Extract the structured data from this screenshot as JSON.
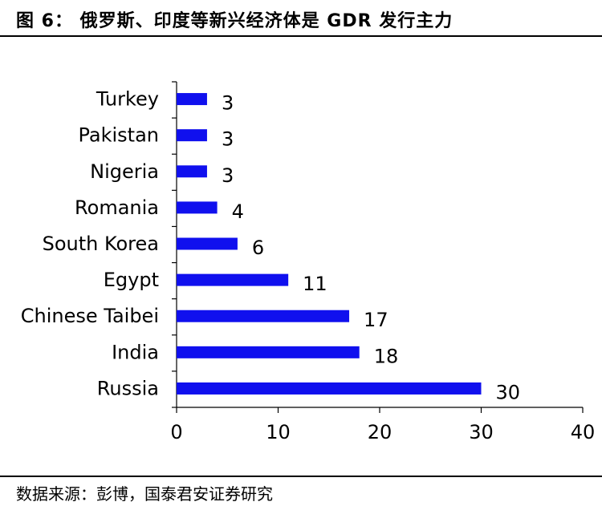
{
  "header": {
    "title": "图 6：  俄罗斯、印度等新兴经济体是 GDR 发行主力"
  },
  "footer": {
    "source": "数据来源：彭博，国泰君安证券研究"
  },
  "chart_data": {
    "type": "bar",
    "orientation": "horizontal",
    "title": "",
    "xlabel": "",
    "ylabel": "",
    "categories": [
      "Turkey",
      "Pakistan",
      "Nigeria",
      "Romania",
      "South Korea",
      "Egypt",
      "Chinese Taibei",
      "India",
      "Russia"
    ],
    "values": [
      3,
      3,
      3,
      4,
      6,
      11,
      17,
      18,
      30
    ],
    "xlim": [
      0,
      40
    ],
    "xticks": [
      0,
      10,
      20,
      30,
      40
    ],
    "grid": false,
    "legend": "none",
    "bar_color": "#1010ee",
    "data_labels": true
  }
}
